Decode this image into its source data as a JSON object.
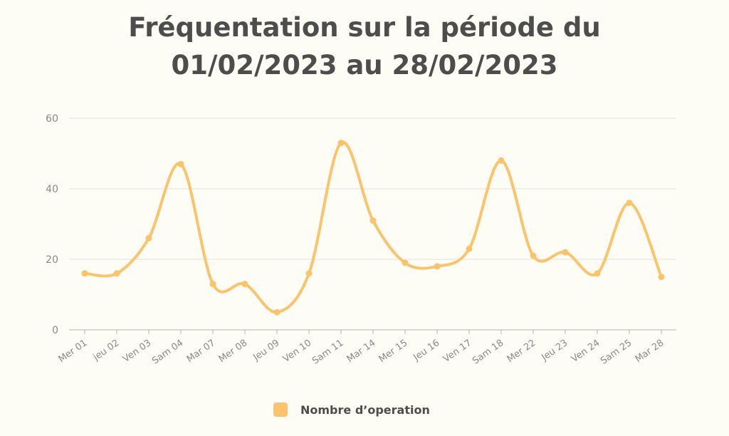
{
  "chart_data": {
    "type": "line",
    "title_line1": "Fréquentation sur la période du",
    "title_line2": "01/02/2023 au 28/02/2023",
    "categories": [
      "Mer 01",
      "jeu 02",
      "Ven 03",
      "Sam 04",
      "Mar 07",
      "Mer 08",
      "Jeu 09",
      "Ven 10",
      "Sam 11",
      "Mar 14",
      "Mer 15",
      "Jeu 16",
      "Ven 17",
      "Sam 18",
      "Mer 22",
      "Jeu 23",
      "Ven 24",
      "Sam 25",
      "Mar 28"
    ],
    "series": [
      {
        "name": "Nombre d’operation",
        "values": [
          16,
          16,
          26,
          47,
          13,
          13,
          5,
          16,
          53,
          31,
          19,
          18,
          23,
          48,
          21,
          22,
          16,
          36,
          15
        ]
      }
    ],
    "y_ticks": [
      "0",
      "20",
      "40",
      "60"
    ],
    "ylim": [
      0,
      60
    ],
    "grid": true,
    "legend_position": "bottom-center",
    "series_color": "#fbc46c",
    "grid_color": "#e2e2dc",
    "axis_color": "#b5b5b0"
  }
}
